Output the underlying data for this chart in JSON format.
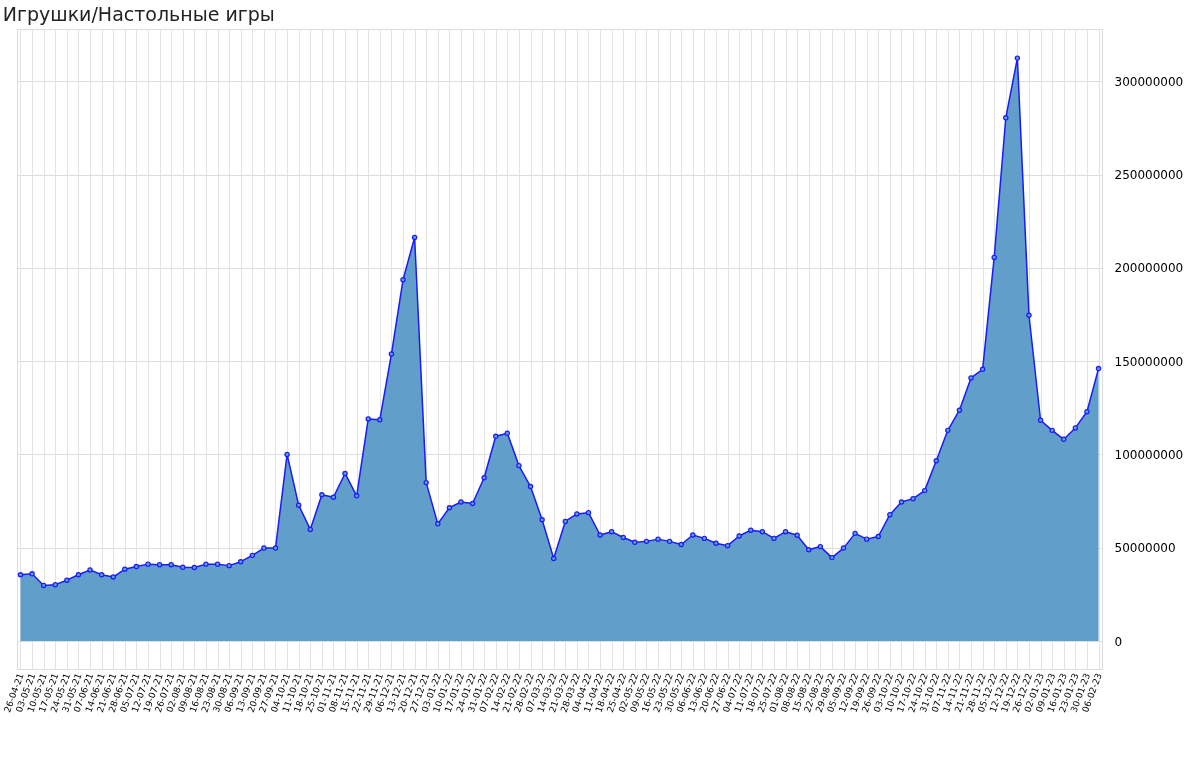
{
  "chart_data": {
    "type": "area",
    "title": "Игрушки/Настольные игры",
    "categories": [
      "26-04-21",
      "03-05-21",
      "10-05-21",
      "17-05-21",
      "24-05-21",
      "31-05-21",
      "07-06-21",
      "14-06-21",
      "21-06-21",
      "28-06-21",
      "05-07-21",
      "12-07-21",
      "19-07-21",
      "26-07-21",
      "02-08-21",
      "09-08-21",
      "16-08-21",
      "23-08-21",
      "30-08-21",
      "06-09-21",
      "13-09-21",
      "20-09-21",
      "27-09-21",
      "04-10-21",
      "11-10-21",
      "18-10-21",
      "25-10-21",
      "01-11-21",
      "08-11-21",
      "15-11-21",
      "22-11-21",
      "29-11-21",
      "06-12-21",
      "13-12-21",
      "20-12-21",
      "27-12-21",
      "03-01-22",
      "10-01-22",
      "17-01-22",
      "24-01-22",
      "31-01-22",
      "07-02-22",
      "14-02-22",
      "21-02-22",
      "28-02-22",
      "07-03-22",
      "14-03-22",
      "21-03-22",
      "28-03-22",
      "04-04-22",
      "11-04-22",
      "18-04-22",
      "25-04-22",
      "02-05-22",
      "09-05-22",
      "16-05-22",
      "23-05-22",
      "30-05-22",
      "06-06-22",
      "13-06-22",
      "20-06-22",
      "27-06-22",
      "04-07-22",
      "11-07-22",
      "18-07-22",
      "25-07-22",
      "01-08-22",
      "08-08-22",
      "15-08-22",
      "22-08-22",
      "29-08-22",
      "05-09-22",
      "12-09-22",
      "19-09-22",
      "26-09-22",
      "03-10-22",
      "10-10-22",
      "17-10-22",
      "24-10-22",
      "31-10-22",
      "07-11-22",
      "14-11-22",
      "21-11-22",
      "28-11-22",
      "05-12-22",
      "12-12-22",
      "19-12-22",
      "26-12-22",
      "02-01-23",
      "09-01-23",
      "16-01-23",
      "23-01-23",
      "30-01-23",
      "06-02-23"
    ],
    "series": [
      {
        "color": "#619fca",
        "values": [
          35500000,
          36000000,
          29800000,
          30200000,
          32600000,
          35500000,
          38100000,
          35500000,
          34300000,
          38500000,
          39900000,
          41200000,
          40900000,
          40900000,
          39500000,
          39400000,
          41200000,
          41200000,
          40400000,
          42500000,
          45900000,
          49800000,
          49800000,
          100000000,
          72800000,
          59800000,
          78400000,
          77100000,
          89800000,
          77800000,
          119000000,
          118600000,
          153800000,
          193600000,
          216300000,
          84900000,
          62800000,
          71400000,
          74500000,
          73700000,
          87500000,
          109700000,
          111300000,
          94000000,
          82800000,
          65000000,
          44200000,
          64100000,
          68100000,
          68800000,
          56800000,
          58600000,
          55500000,
          52900000,
          53400000,
          54600000,
          53400000,
          51700000,
          56800000,
          55000000,
          52400000,
          51100000,
          56300000,
          59400000,
          58600000,
          55000000,
          58600000,
          56700000,
          48900000,
          50600000,
          44700000,
          49800000,
          57700000,
          54600000,
          56000000,
          67700000,
          74500000,
          76300000,
          80600000,
          96600000,
          112900000,
          123700000,
          141000000,
          145600000,
          205600000,
          280400000,
          312400000,
          174600000,
          118300000,
          112900000,
          108100000,
          114200000,
          122900000,
          146000000
        ]
      }
    ],
    "ylim": [
      -15000000,
      328000000
    ],
    "yticks": [
      0,
      50000000,
      100000000,
      150000000,
      200000000,
      250000000,
      300000000
    ],
    "grid": true,
    "marker": "circle",
    "line_style": "solid"
  }
}
